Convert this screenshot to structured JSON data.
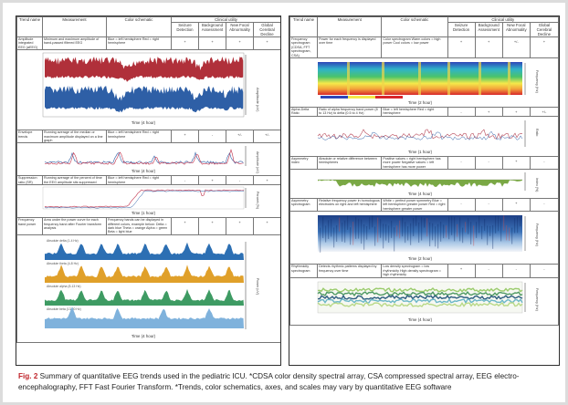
{
  "header": {
    "trend_name": "Trend name",
    "measurement": "Measurement",
    "color_schematic": "Color schematic",
    "clinical_utility": "Clinical utility",
    "col_seizure": "Seizure Detection",
    "col_background": "Background Assessment",
    "col_focal": "New Focal Abnormality",
    "col_global": "Global Cerebral Decline"
  },
  "left_rows": [
    {
      "name": "Amplitude integrated EEG (aEEG)",
      "measurement": "Minimum and maximum amplitude of band-passed filtered EEG",
      "color": "Blue = left hemisphere Red = right hemisphere",
      "marks": [
        "+",
        "+",
        "+",
        "+"
      ],
      "time_label": "Time (4 hour)",
      "y_label": "Amplitude (uV)"
    },
    {
      "name": "Envelope trends",
      "measurement": "Running average of the median or maximum amplitude displayed on a line graph",
      "color": "Blue = left hemisphere Red = right hemisphere",
      "marks": [
        "+",
        "-",
        "+/-",
        "+/-"
      ],
      "time_label": "Time (4 hour)",
      "y_label": "Amplitude (uV)"
    },
    {
      "name": "Suppression ratio (SR)",
      "measurement": "Running average of the percent of time the EEG amplitude sits suppressed",
      "color": "Blue = left hemisphere Red = right hemisphere",
      "marks": [
        "-",
        "+",
        "-",
        "+"
      ],
      "time_label": "Time (1 hour)",
      "y_label": "Percent (%)"
    },
    {
      "name": "Frequency band power",
      "measurement": "Area under the power curve for each frequency band after Fourier transform analysis",
      "color": "Frequency bands can be displayed in different colors, example below: Delta = dark blue Theta = orange Alpha = green Beta = light blue",
      "marks": [
        "+",
        "+",
        "+",
        "+"
      ],
      "time_label": "Time (4 hour)",
      "bands": [
        "Absolute delta (1-4 Hz)",
        "Absolute theta (4-8 Hz)",
        "Absolute alpha (8-13 Hz)",
        "Absolute beta (13-30 Hz)"
      ],
      "y_label": "Power (uV)"
    }
  ],
  "right_rows": [
    {
      "name": "Frequency spectrogram (CDSA, FFT spectrogram, CSA)",
      "measurement": "Power for each frequency is displayed over time",
      "color": "Color spectrogram Warm colors = high power Cool colors = low power",
      "marks": [
        "+",
        "+",
        "+/-",
        "+"
      ],
      "time_label": "Time (2 hour)",
      "y_label": "Frequency (Hz)"
    },
    {
      "name": "Alpha-Delta Ratio",
      "measurement": "Ratio of alpha frequency band power (8 to 13 Hz) to delta (0.5 to 4 Hz)",
      "color": "Blue = left hemisphere Red = right hemisphere",
      "marks": [
        "-",
        "+",
        "+",
        "+/-"
      ],
      "time_label": "Time (1 hour)",
      "y_label": "Ratio"
    },
    {
      "name": "Asymmetry index",
      "measurement": "Absolute or relative difference between hemispheres",
      "color": "Positive values = right hemisphere has more power Negative values = left hemisphere has more power",
      "marks": [
        "-",
        "-",
        "+",
        "-"
      ],
      "time_label": "Time (4 hour)",
      "y_label": "Index (%)"
    },
    {
      "name": "Asymmetry spectrogram",
      "measurement": "Relative frequency power in homologous electrodes on right and left hemisphere",
      "color": "White = perfect power symmetry Blue = left hemisphere greater power Red = right hemisphere greater power",
      "marks": [
        "-",
        "-",
        "+",
        "-"
      ],
      "time_label": "Time (2 hour)",
      "y_label": "Frequency (Hz)"
    },
    {
      "name": "Rhythmicity spectrogram",
      "measurement": "Detects rhythmic patterns displayed by frequency over time",
      "color": "Low density spectrogram = low rhythmicity High density spectrogram = high rhythmicity",
      "marks": [
        "+",
        "-",
        "-",
        "-"
      ],
      "time_label": "Time (4 hour)",
      "y_label": "Frequency (Hz)"
    }
  ],
  "caption": {
    "label": "Fig. 2",
    "text": "Summary of quantitative EEG trends used in the pediatric ICU. *CDSA color density spectral array, CSA compressed spectral array, EEG electro-encephalography, FFT Fast Fourier Transform. *Trends, color schematics, axes, and scales may vary by quantitative EEG software"
  },
  "colors": {
    "red_trace": "#b0303a",
    "blue_trace": "#2e5fa6",
    "delta": "#2c6fb3",
    "theta": "#e0a02a",
    "alpha": "#3e9b63",
    "beta": "#7fb2dc",
    "asym_fill": "#7aa845"
  }
}
